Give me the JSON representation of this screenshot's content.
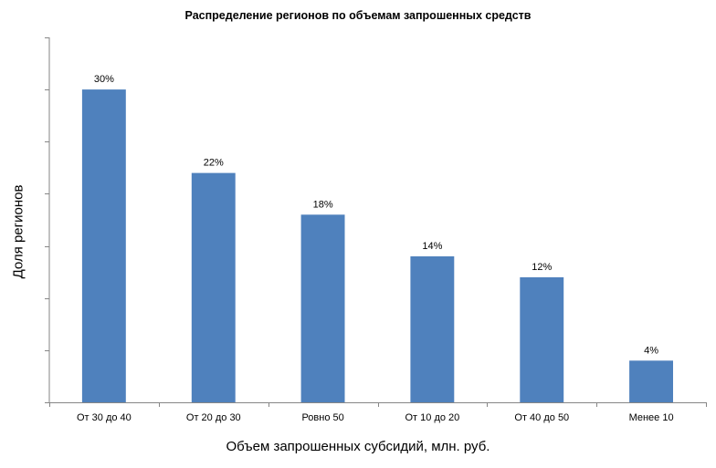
{
  "chart_data": {
    "type": "bar",
    "title": "Распределение регионов по объемам запрошенных средств",
    "xlabel": "Объем запрошенных субсидий, млн. руб.",
    "ylabel": "Доля регионов",
    "categories": [
      "От 30 до 40",
      "От 20 до 30",
      "Ровно 50",
      "От 10 до 20",
      "От 40 до 50",
      "Менее 10"
    ],
    "values": [
      30,
      22,
      18,
      14,
      12,
      4
    ],
    "data_labels": [
      "30%",
      "22%",
      "18%",
      "14%",
      "12%",
      "4%"
    ],
    "ylim": [
      0,
      35
    ],
    "y_ticks": [
      0,
      5,
      10,
      15,
      20,
      25,
      30,
      35
    ],
    "y_tick_labels_shown": false,
    "grid": false,
    "legend": "none",
    "bar_color": "#4F81BD"
  }
}
